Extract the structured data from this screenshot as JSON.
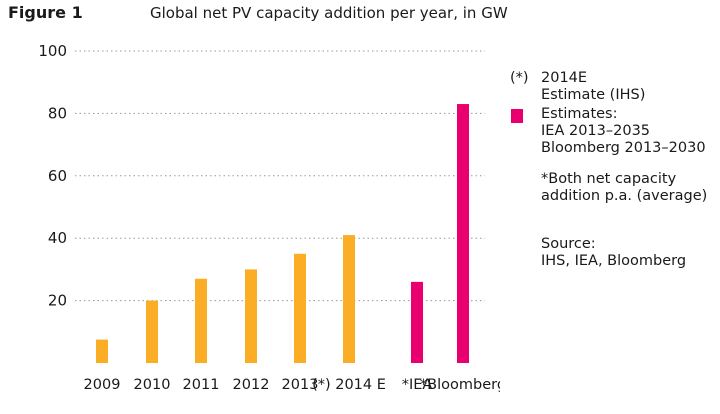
{
  "figure_label": "Figure 1",
  "colors": {
    "orange": "#fbad25",
    "magenta": "#e9006e",
    "grid": "#999999"
  },
  "legend": {
    "marker_symbol": "(*)",
    "marker_lines": [
      "2014E",
      "Estimate (IHS)"
    ],
    "swatch_lines": [
      "Estimates:",
      "IEA 2013–2035",
      "Bloomberg 2013–2030"
    ]
  },
  "note_lines": [
    "*Both net capacity",
    "addition p.a. (average)"
  ],
  "source_lines": [
    "Source:",
    "IHS, IEA, Bloomberg"
  ],
  "chart_data": {
    "type": "bar",
    "title": "Global net PV capacity addition per year, in GW",
    "xlabel": "",
    "ylabel": "",
    "ylim": [
      0,
      100
    ],
    "yticks": [
      20,
      40,
      60,
      80,
      100
    ],
    "grid": true,
    "categories": [
      "2009",
      "2010",
      "2011",
      "2012",
      "2013",
      "(*) 2014 E",
      "*IEA",
      "*Bloomberg"
    ],
    "values": [
      7.5,
      20,
      27,
      30,
      35,
      41,
      26,
      83
    ],
    "bar_colors": [
      "orange",
      "orange",
      "orange",
      "orange",
      "orange",
      "orange",
      "magenta",
      "magenta"
    ]
  }
}
